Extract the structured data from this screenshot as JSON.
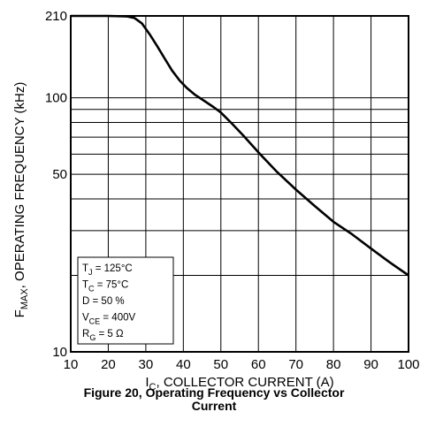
{
  "chart_data": {
    "type": "line",
    "xlabel_main": "I",
    "xlabel_sub": "C",
    "xlabel_rest": ", COLLECTOR CURRENT (A)",
    "ylabel_main": "F",
    "ylabel_sub": "MAX",
    "ylabel_rest": ", OPERATING FREQUENCY (kHz)",
    "xlim": [
      10,
      100
    ],
    "ylim": [
      10,
      210
    ],
    "y_scale": "log",
    "grid": true,
    "x_ticks": [
      "10",
      "20",
      "30",
      "40",
      "50",
      "60",
      "70",
      "80",
      "90",
      "100"
    ],
    "y_ticks": [
      {
        "value": 210,
        "label": "210"
      },
      {
        "value": 100,
        "label": "100"
      },
      {
        "value": 50,
        "label": "50"
      },
      {
        "value": 10,
        "label": "10"
      }
    ],
    "y_gridlines": [
      20,
      30,
      40,
      50,
      60,
      70,
      80,
      90,
      100
    ],
    "series": [
      {
        "x": [
          10,
          20,
          25,
          27,
          29,
          31,
          33,
          35,
          37,
          39,
          41,
          43,
          45,
          48,
          50,
          53,
          56,
          60,
          65,
          70,
          75,
          80,
          85,
          90,
          95,
          100
        ],
        "y": [
          210,
          210,
          209,
          206,
          196,
          178,
          160,
          143,
          128,
          117,
          109,
          103,
          98.5,
          92,
          87.5,
          79,
          71,
          61,
          51,
          43.5,
          37.5,
          32.5,
          29,
          25.5,
          22.5,
          20
        ]
      }
    ],
    "legend": {
      "placement": "bottom-left",
      "lines": [
        {
          "main": "T",
          "sub": "J",
          "rest": " =  125°C"
        },
        {
          "main": "T",
          "sub": "C",
          "rest": " =  75°C"
        },
        {
          "main": "D",
          "sub": "",
          "rest": " = 50 %"
        },
        {
          "main": "V",
          "sub": "CE",
          "rest": " =  400V"
        },
        {
          "main": "R",
          "sub": "G",
          "rest": " = 5 Ω"
        }
      ]
    },
    "caption_line1": "Figure 20, Operating  Frequency  vs Collector",
    "caption_line2": "Current",
    "colors": {
      "line": "#000000",
      "grid": "#000000",
      "background": "#ffffff"
    }
  }
}
